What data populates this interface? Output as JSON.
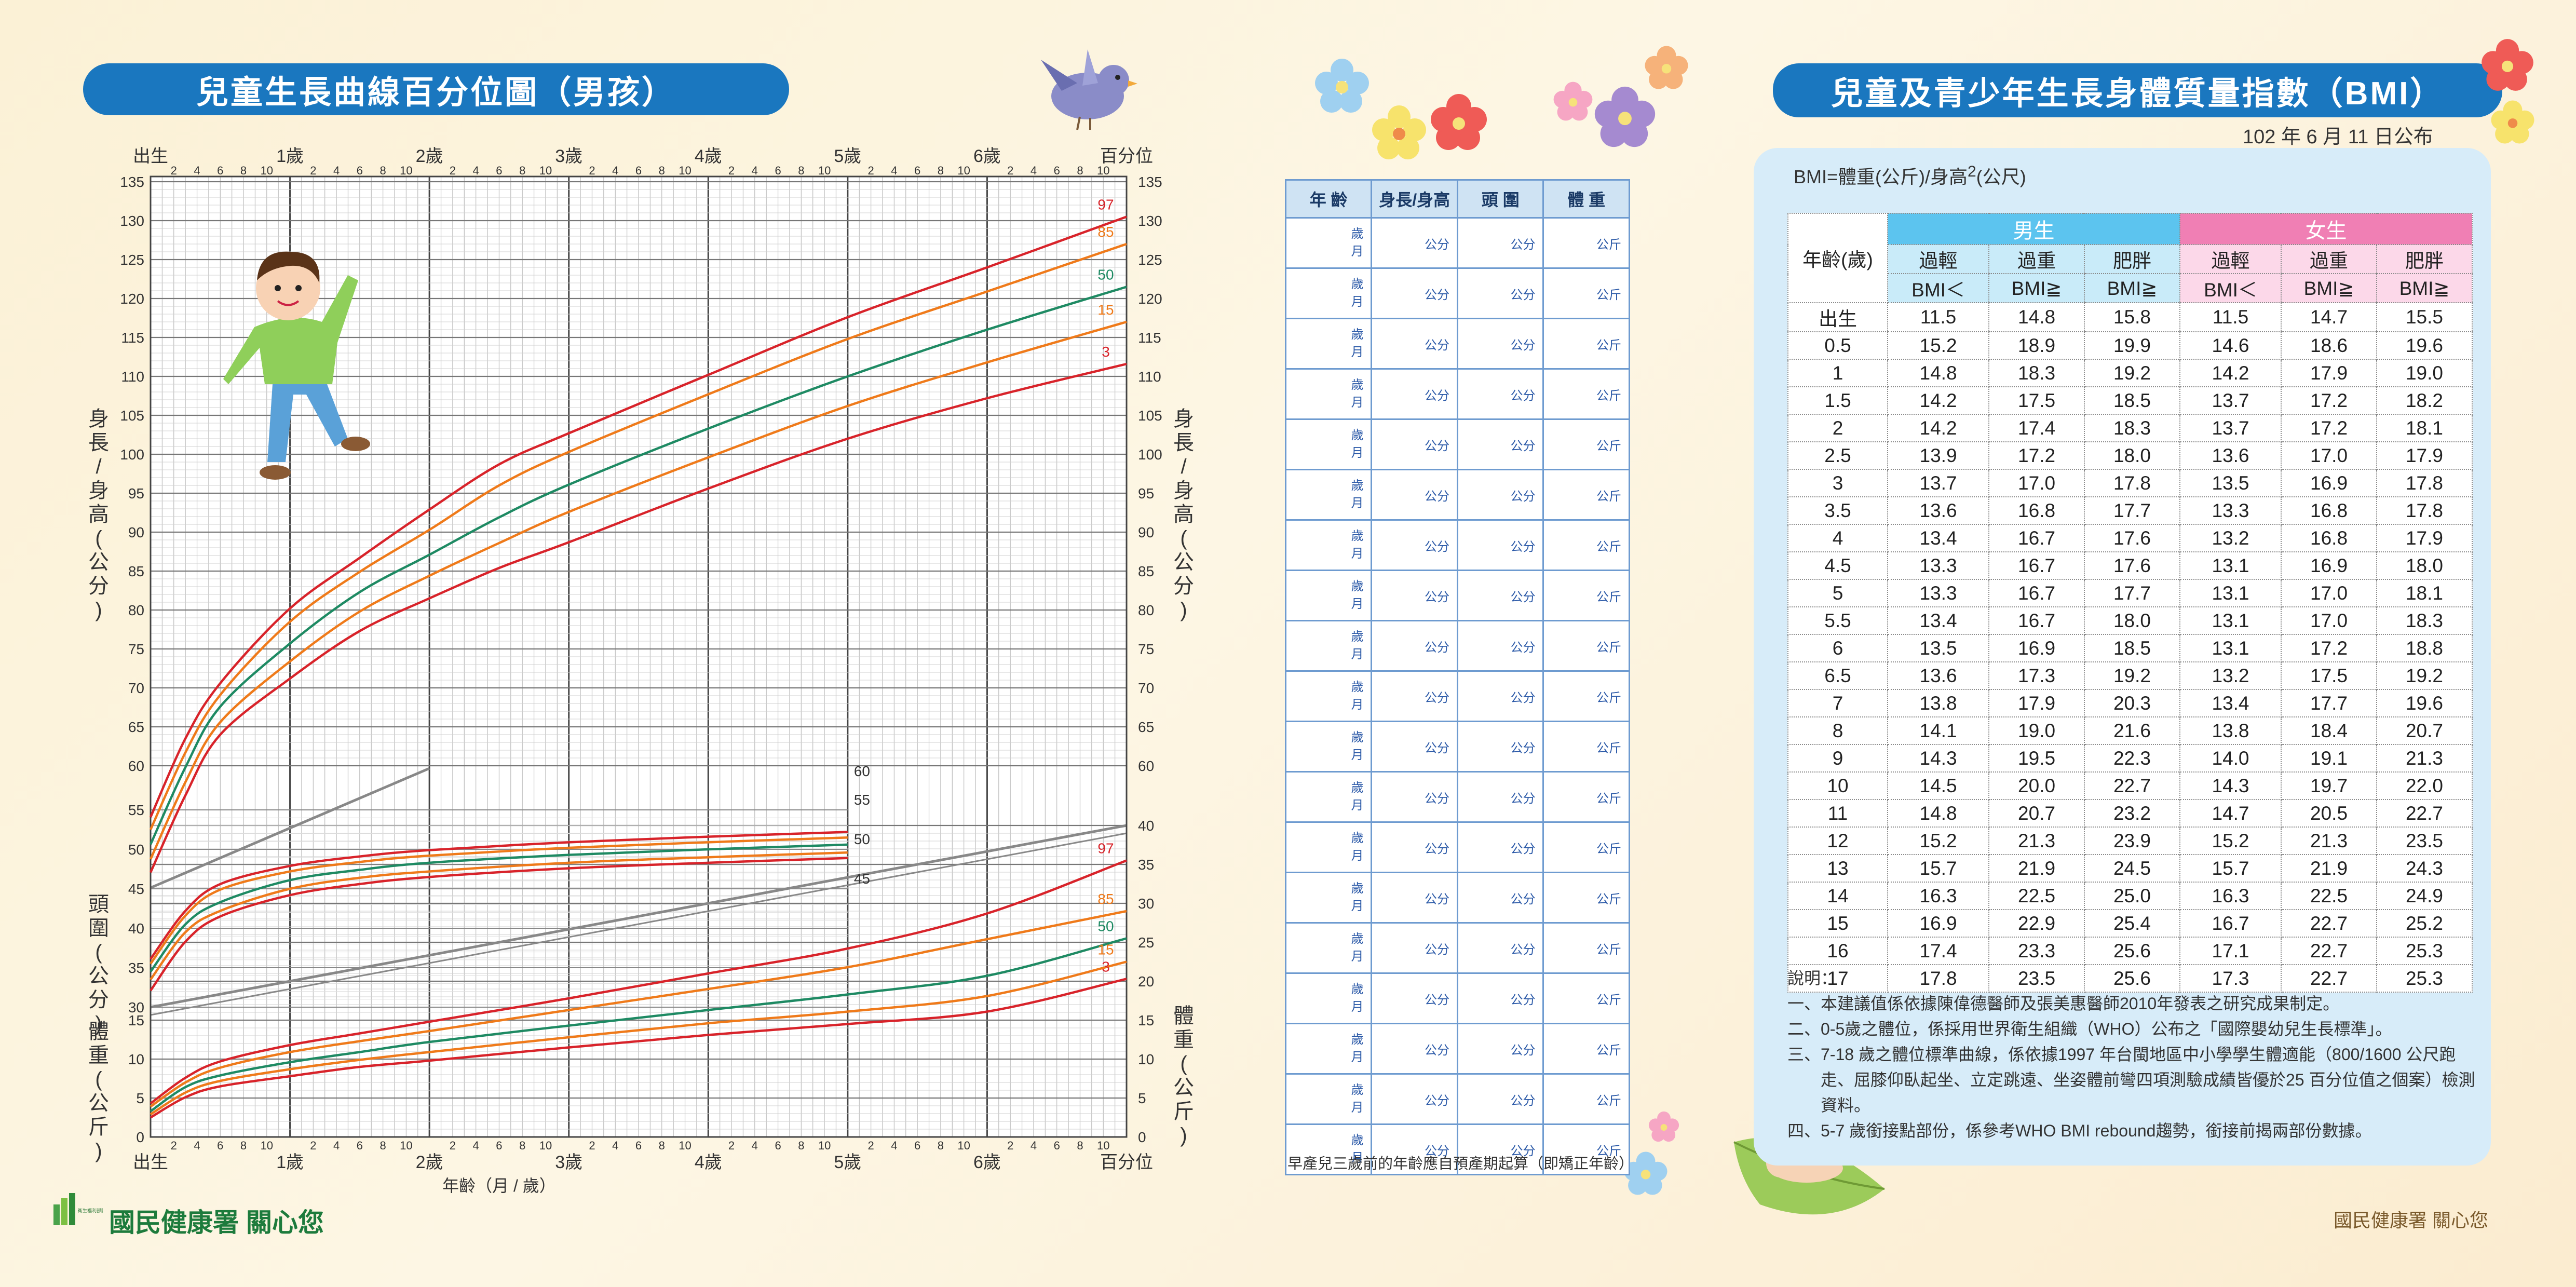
{
  "growth_title": "兒童生長曲線百分位圖（男孩）",
  "bmi_title": "兒童及青少年生長身體質量指數（BMI）",
  "bmi_date": "102 年 6 月 11 日公布",
  "chart_data": {
    "type": "line",
    "top_axis": {
      "labels": [
        "出生",
        "1歲",
        "2歲",
        "3歲",
        "4歲",
        "5歲",
        "6歲",
        "百分位"
      ],
      "minor_ticks": [
        "2",
        "4",
        "6",
        "8",
        "10"
      ]
    },
    "bottom_axis": {
      "labels": [
        "出生",
        "1歲",
        "2歲",
        "3歲",
        "4歲",
        "5歲",
        "6歲",
        "百分位"
      ],
      "minor_ticks": [
        "2",
        "4",
        "6",
        "8",
        "10"
      ],
      "title": "年齡（月 / 歲）"
    },
    "x_unit_label": "",
    "height_axis": {
      "label": "身長/身高(公分)",
      "ticks": [
        60,
        65,
        70,
        75,
        80,
        85,
        90,
        95,
        100,
        105,
        110,
        115,
        120,
        125,
        130,
        135
      ],
      "range": [
        60,
        135
      ]
    },
    "head_axis": {
      "label": "頭圍(公分)",
      "ticks": [
        30,
        35,
        40,
        45,
        50,
        55
      ],
      "ticks_right": [
        45,
        50,
        55,
        60
      ],
      "range": [
        30,
        55
      ]
    },
    "weight_axis": {
      "label": "體重(公斤)",
      "ticks": [
        0,
        5,
        10,
        15,
        20,
        25,
        30,
        35,
        40
      ],
      "range": [
        0,
        40
      ]
    },
    "x_range_years": [
      0,
      7
    ],
    "percentiles": [
      "97",
      "85",
      "50",
      "15",
      "3"
    ],
    "height": {
      "x": [
        0,
        0.25,
        0.5,
        1,
        1.5,
        2,
        2.5,
        3,
        4,
        5,
        6,
        7
      ],
      "series": [
        {
          "name": "97",
          "values": [
            53.4,
            63.5,
            70.6,
            80.2,
            86.7,
            92.9,
            98.7,
            102.7,
            110.2,
            117.6,
            124.0,
            130.5
          ]
        },
        {
          "name": "85",
          "values": [
            51.8,
            61.7,
            69.1,
            78.5,
            84.9,
            90.3,
            96.0,
            100.3,
            107.7,
            114.8,
            120.9,
            127.0
          ]
        },
        {
          "name": "50",
          "values": [
            49.9,
            59.8,
            67.6,
            75.7,
            82.3,
            87.1,
            91.9,
            96.1,
            103.3,
            110.0,
            116.0,
            121.5
          ]
        },
        {
          "name": "15",
          "values": [
            48.0,
            57.9,
            65.6,
            73.4,
            79.8,
            84.4,
            88.6,
            92.6,
            99.6,
            106.2,
            111.8,
            117.0
          ]
        },
        {
          "name": "3",
          "values": [
            46.3,
            56.2,
            64.0,
            71.2,
            77.3,
            81.5,
            85.4,
            88.7,
            95.6,
            102.0,
            107.2,
            111.6
          ]
        }
      ]
    },
    "head": {
      "x": [
        0,
        0.25,
        0.5,
        1,
        1.5,
        2,
        3,
        4,
        5
      ],
      "series": [
        {
          "name": "97",
          "values": [
            36.1,
            42.2,
            45.6,
            47.9,
            49.1,
            49.9,
            50.9,
            51.6,
            52.2
          ]
        },
        {
          "name": "85",
          "values": [
            35.5,
            41.6,
            44.9,
            47.2,
            48.4,
            49.2,
            50.2,
            50.9,
            51.5
          ]
        },
        {
          "name": "50",
          "values": [
            34.5,
            40.5,
            43.3,
            46.1,
            47.4,
            48.3,
            49.3,
            50.0,
            50.6
          ]
        },
        {
          "name": "15",
          "values": [
            33.5,
            39.5,
            42.2,
            45.0,
            46.4,
            47.2,
            48.3,
            49.0,
            49.6
          ]
        },
        {
          "name": "3",
          "values": [
            32.1,
            38.3,
            41.5,
            44.2,
            45.6,
            46.5,
            47.6,
            48.3,
            48.9
          ]
        }
      ]
    },
    "weight": {
      "x": [
        0,
        0.25,
        0.5,
        1,
        1.5,
        2,
        3,
        4,
        5,
        6,
        7
      ],
      "series": [
        {
          "name": "97",
          "values": [
            4.3,
            7.6,
            9.7,
            11.8,
            13.3,
            14.8,
            17.8,
            21.0,
            24.2,
            28.7,
            35.5
          ]
        },
        {
          "name": "85",
          "values": [
            3.9,
            7.0,
            8.9,
            10.9,
            12.3,
            13.6,
            16.3,
            19.0,
            21.8,
            25.4,
            29.0
          ]
        },
        {
          "name": "50",
          "values": [
            3.3,
            6.4,
            7.9,
            9.6,
            10.9,
            12.2,
            14.3,
            16.3,
            18.3,
            20.7,
            25.5
          ]
        },
        {
          "name": "15",
          "values": [
            2.9,
            5.7,
            7.2,
            8.7,
            9.9,
            10.9,
            12.8,
            14.6,
            16.1,
            18.1,
            22.5
          ]
        },
        {
          "name": "3",
          "values": [
            2.5,
            5.1,
            6.5,
            7.8,
            9.0,
            9.8,
            11.5,
            13.1,
            14.5,
            16.1,
            20.3
          ]
        }
      ]
    },
    "percentile_colors": {
      "97": "#d8232a",
      "85": "#ef7a1a",
      "50": "#1e8a63",
      "15": "#ef7a1a",
      "3": "#d8232a"
    }
  },
  "record_table": {
    "headers": [
      "年 齡",
      "身長/身高",
      "頭 圍",
      "體 重"
    ],
    "age_year_unit": "歲",
    "age_month_unit": "月",
    "length_unit": "公分",
    "head_unit": "公分",
    "weight_unit": "公斤",
    "rows": 19,
    "note": "早產兒三歲前的年齡應自預產期起算（即矯正年齡）"
  },
  "bmi": {
    "formula": "BMI=體重(公斤)/身高",
    "formula_sup": "2",
    "formula_end": "(公尺)",
    "age_header": "年齡(歲)",
    "boy_header": "男生",
    "girl_header": "女生",
    "cols": [
      "過輕",
      "過重",
      "肥胖"
    ],
    "subs": [
      "BMI＜",
      "BMI≧",
      "BMI≧"
    ],
    "rows": [
      [
        "出生",
        "11.5",
        "14.8",
        "15.8",
        "11.5",
        "14.7",
        "15.5"
      ],
      [
        "0.5",
        "15.2",
        "18.9",
        "19.9",
        "14.6",
        "18.6",
        "19.6"
      ],
      [
        "1",
        "14.8",
        "18.3",
        "19.2",
        "14.2",
        "17.9",
        "19.0"
      ],
      [
        "1.5",
        "14.2",
        "17.5",
        "18.5",
        "13.7",
        "17.2",
        "18.2"
      ],
      [
        "2",
        "14.2",
        "17.4",
        "18.3",
        "13.7",
        "17.2",
        "18.1"
      ],
      [
        "2.5",
        "13.9",
        "17.2",
        "18.0",
        "13.6",
        "17.0",
        "17.9"
      ],
      [
        "3",
        "13.7",
        "17.0",
        "17.8",
        "13.5",
        "16.9",
        "17.8"
      ],
      [
        "3.5",
        "13.6",
        "16.8",
        "17.7",
        "13.3",
        "16.8",
        "17.8"
      ],
      [
        "4",
        "13.4",
        "16.7",
        "17.6",
        "13.2",
        "16.8",
        "17.9"
      ],
      [
        "4.5",
        "13.3",
        "16.7",
        "17.6",
        "13.1",
        "16.9",
        "18.0"
      ],
      [
        "5",
        "13.3",
        "16.7",
        "17.7",
        "13.1",
        "17.0",
        "18.1"
      ],
      [
        "5.5",
        "13.4",
        "16.7",
        "18.0",
        "13.1",
        "17.0",
        "18.3"
      ],
      [
        "6",
        "13.5",
        "16.9",
        "18.5",
        "13.1",
        "17.2",
        "18.8"
      ],
      [
        "6.5",
        "13.6",
        "17.3",
        "19.2",
        "13.2",
        "17.5",
        "19.2"
      ],
      [
        "7",
        "13.8",
        "17.9",
        "20.3",
        "13.4",
        "17.7",
        "19.6"
      ],
      [
        "8",
        "14.1",
        "19.0",
        "21.6",
        "13.8",
        "18.4",
        "20.7"
      ],
      [
        "9",
        "14.3",
        "19.5",
        "22.3",
        "14.0",
        "19.1",
        "21.3"
      ],
      [
        "10",
        "14.5",
        "20.0",
        "22.7",
        "14.3",
        "19.7",
        "22.0"
      ],
      [
        "11",
        "14.8",
        "20.7",
        "23.2",
        "14.7",
        "20.5",
        "22.7"
      ],
      [
        "12",
        "15.2",
        "21.3",
        "23.9",
        "15.2",
        "21.3",
        "23.5"
      ],
      [
        "13",
        "15.7",
        "21.9",
        "24.5",
        "15.7",
        "21.9",
        "24.3"
      ],
      [
        "14",
        "16.3",
        "22.5",
        "25.0",
        "16.3",
        "22.5",
        "24.9"
      ],
      [
        "15",
        "16.9",
        "22.9",
        "25.4",
        "16.7",
        "22.7",
        "25.2"
      ],
      [
        "16",
        "17.4",
        "23.3",
        "25.6",
        "17.1",
        "22.7",
        "25.3"
      ],
      [
        "17",
        "17.8",
        "23.5",
        "25.6",
        "17.3",
        "22.7",
        "25.3"
      ]
    ],
    "notes_title": "說明：",
    "notes": [
      "一、本建議值係依據陳偉德醫師及張美惠醫師2010年發表之研究成果制定。",
      "二、0-5歲之體位，係採用世界衛生組織（WHO）公布之「國際嬰幼兒生長標準」。",
      "三、7-18 歲之體位標準曲線，係依據1997 年台閩地區中小學學生體適能（800/1600 公尺跑走、屈膝仰臥起坐、立定跳遠、坐姿體前彎四項測驗成績皆優於25 百分位值之個案）檢測資料。",
      "四、5-7 歲銜接點部份，係參考WHO BMI rebound趨勢，銜接前揭兩部份數據。"
    ]
  },
  "footer_left": "國民健康署 關心您",
  "footer_right": "國民健康署 關心您",
  "logo_text": "衛生福利部國民健康署"
}
